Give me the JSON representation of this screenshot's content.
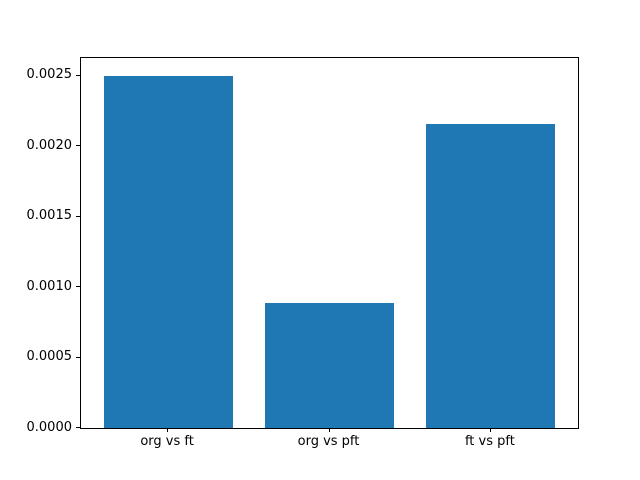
{
  "chart_data": {
    "type": "bar",
    "categories": [
      "org vs ft",
      "org vs pft",
      "ft vs pft"
    ],
    "values": [
      0.0025,
      0.00089,
      0.00216
    ],
    "title": "",
    "xlabel": "",
    "ylabel": "",
    "ylim": [
      0,
      0.002625
    ],
    "xlim": [
      -0.54,
      2.54
    ],
    "bar_width": 0.8,
    "yticks": [
      0.0,
      0.0005,
      0.001,
      0.0015,
      0.002,
      0.0025
    ],
    "ytick_labels": [
      "0.0000",
      "0.0005",
      "0.0010",
      "0.0015",
      "0.0020",
      "0.0025"
    ],
    "bar_color": "#1f77b4",
    "axis_color": "#000000",
    "background_color": "#ffffff",
    "grid": false,
    "legend": null
  }
}
